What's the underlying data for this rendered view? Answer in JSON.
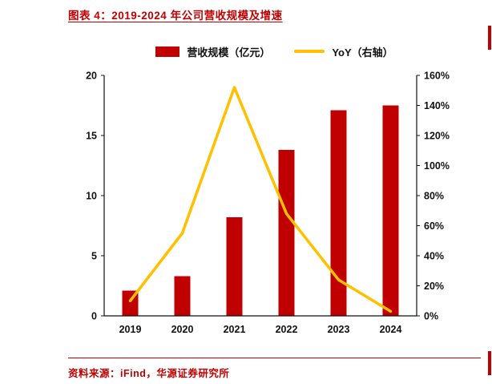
{
  "page": {
    "title": "图表 4：2019-2024 年公司营收规模及增速",
    "source": "资料来源：iFind，华源证券研究所",
    "accent_color": "#C00000"
  },
  "chart_data": {
    "type": "bar",
    "subtype": "bar+line combo, dual axis",
    "categories": [
      "2019",
      "2020",
      "2021",
      "2022",
      "2023",
      "2024"
    ],
    "series": [
      {
        "name": "营收规模（亿元）",
        "type": "bar",
        "axis": "left",
        "color": "#C00000",
        "values": [
          2.1,
          3.3,
          8.2,
          13.8,
          17.1,
          17.5
        ]
      },
      {
        "name": "YoY（右轴）",
        "type": "line",
        "axis": "right",
        "color": "#FFC000",
        "values": [
          10,
          55,
          152,
          68,
          24,
          3
        ]
      }
    ],
    "left_axis": {
      "min": 0,
      "max": 20,
      "step": 5,
      "ticks": [
        "0",
        "5",
        "10",
        "15",
        "20"
      ]
    },
    "right_axis": {
      "min": 0,
      "max": 160,
      "step": 20,
      "ticks": [
        "0%",
        "20%",
        "40%",
        "60%",
        "80%",
        "100%",
        "120%",
        "140%",
        "160%"
      ]
    },
    "legend_position": "top",
    "grid": false
  }
}
